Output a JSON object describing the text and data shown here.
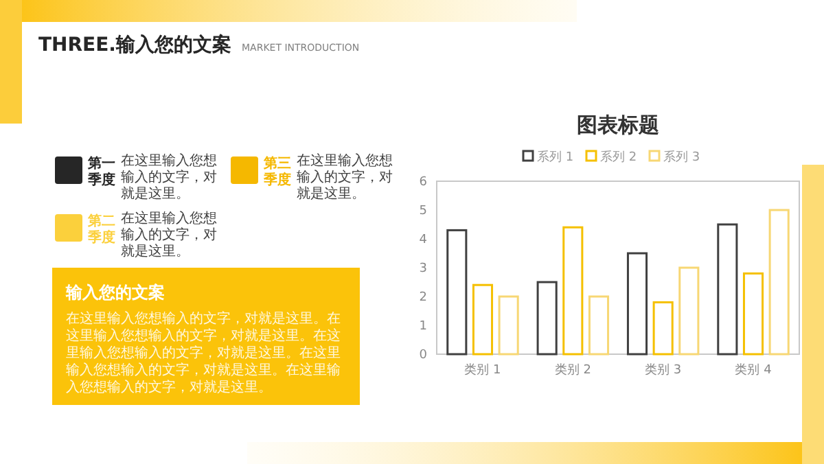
{
  "chart_data": [
    {
      "type": "other",
      "title": "THREE.输入您的文案",
      "subtitle": "MARKET INTRODUCTION",
      "annotations": [
        "第一季度",
        "在这里输入您想输入的文字，对就是这里。",
        "第三季度",
        "在这里输入您想输入的文字，对就是这里。",
        "第二季度",
        "在这里输入您想输入的文字，对就是这里。",
        "输入您的文案",
        "在这里输入您想输入的文字，对就是这里。在这里输入您想输入的文字，对就是这里。在这里输入您想输入的文字，对就是这里。在这里输入您想输入的文字，对就是这里。在这里输入您想输入的文字，对就是这里。"
      ]
    },
    {
      "type": "bar",
      "title": "图表标题",
      "categories": [
        "类别 1",
        "类别 2",
        "类别 3",
        "类别 4"
      ],
      "ylim": [
        0,
        6
      ],
      "yticks": [
        0,
        1,
        2,
        3,
        4,
        5,
        6
      ],
      "legend": "top",
      "series": [
        {
          "name": "系列 1",
          "color": "#404040",
          "values": [
            4.3,
            2.5,
            3.5,
            4.5
          ]
        },
        {
          "name": "系列 2",
          "color": "#f5c000",
          "values": [
            2.4,
            4.4,
            1.8,
            2.8
          ]
        },
        {
          "name": "系列 3",
          "color": "#f7d774",
          "values": [
            2,
            2,
            3,
            5
          ]
        }
      ]
    }
  ]
}
